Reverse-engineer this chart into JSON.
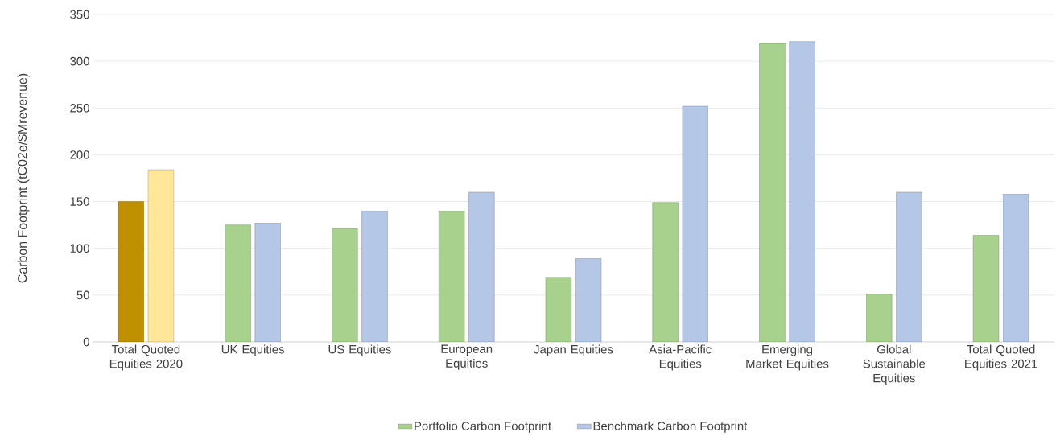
{
  "chart_data": {
    "type": "bar",
    "ylabel": "Carbon Footprint (tC02e/$Mrevenue)",
    "categories": [
      "Total Quoted Equities 2020",
      "UK Equities",
      "US Equities",
      "European Equities",
      "Japan Equities",
      "Asia-Pacific Equities",
      "Emerging Market Equities",
      "Global Sustainable Equities",
      "Total Quoted Equities 2021"
    ],
    "series": [
      {
        "name": "Portfolio Carbon Footprint",
        "color": "#a9d18e",
        "colors": [
          "#bf9000",
          "#a9d18e",
          "#a9d18e",
          "#a9d18e",
          "#a9d18e",
          "#a9d18e",
          "#a9d18e",
          "#a9d18e",
          "#a9d18e"
        ],
        "values": [
          150,
          125,
          121,
          140,
          69,
          149,
          319,
          51,
          114
        ]
      },
      {
        "name": "Benchmark Carbon Footprint",
        "color": "#b4c7e7",
        "colors": [
          "#ffe699",
          "#b4c7e7",
          "#b4c7e7",
          "#b4c7e7",
          "#b4c7e7",
          "#b4c7e7",
          "#b4c7e7",
          "#b4c7e7",
          "#b4c7e7"
        ],
        "values": [
          184,
          127,
          140,
          160,
          89,
          252,
          321,
          160,
          158
        ]
      }
    ],
    "ylim": [
      0,
      350
    ],
    "yticks": [
      0,
      50,
      100,
      150,
      200,
      250,
      300,
      350
    ],
    "grid": "y",
    "legend": "bottom"
  }
}
